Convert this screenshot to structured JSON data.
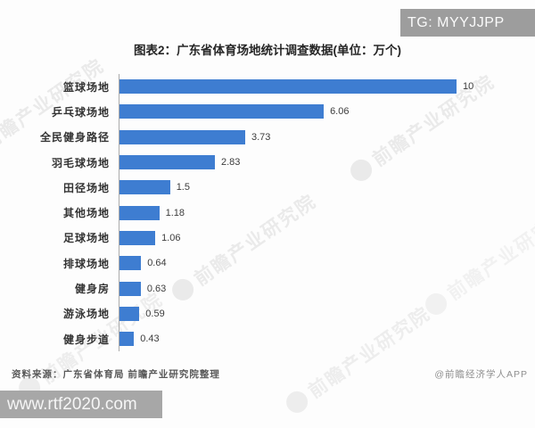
{
  "overlays": {
    "tg_badge": "TG: MYYJJPP",
    "url_badge": "www.rtf2020.com"
  },
  "chart_data": {
    "type": "bar",
    "orientation": "horizontal",
    "title": "图表2：广东省体育场地统计调查数据(单位：万个)",
    "unit": "万个",
    "categories": [
      "篮球场地",
      "乒乓球场地",
      "全民健身路径",
      "羽毛球场地",
      "田径场地",
      "其他场地",
      "足球场地",
      "排球场地",
      "健身房",
      "游泳场地",
      "健身步道"
    ],
    "values": [
      10,
      6.06,
      3.73,
      2.83,
      1.5,
      1.18,
      1.06,
      0.64,
      0.63,
      0.59,
      0.43
    ],
    "value_labels": [
      "10",
      "6.06",
      "3.73",
      "2.83",
      "1.5",
      "1.18",
      "1.06",
      "0.64",
      "0.63",
      "0.59",
      "0.43"
    ],
    "xlabel": "",
    "ylabel": "",
    "xlim": [
      0,
      11.1
    ],
    "grid": false,
    "legend": false,
    "bar_color": "#3E7DD1"
  },
  "footer": {
    "source": "资料来源：广东省体育局 前瞻产业研究院整理",
    "credit": "@前瞻经济学人APP"
  },
  "watermark": {
    "text": "前瞻产业研究院"
  }
}
